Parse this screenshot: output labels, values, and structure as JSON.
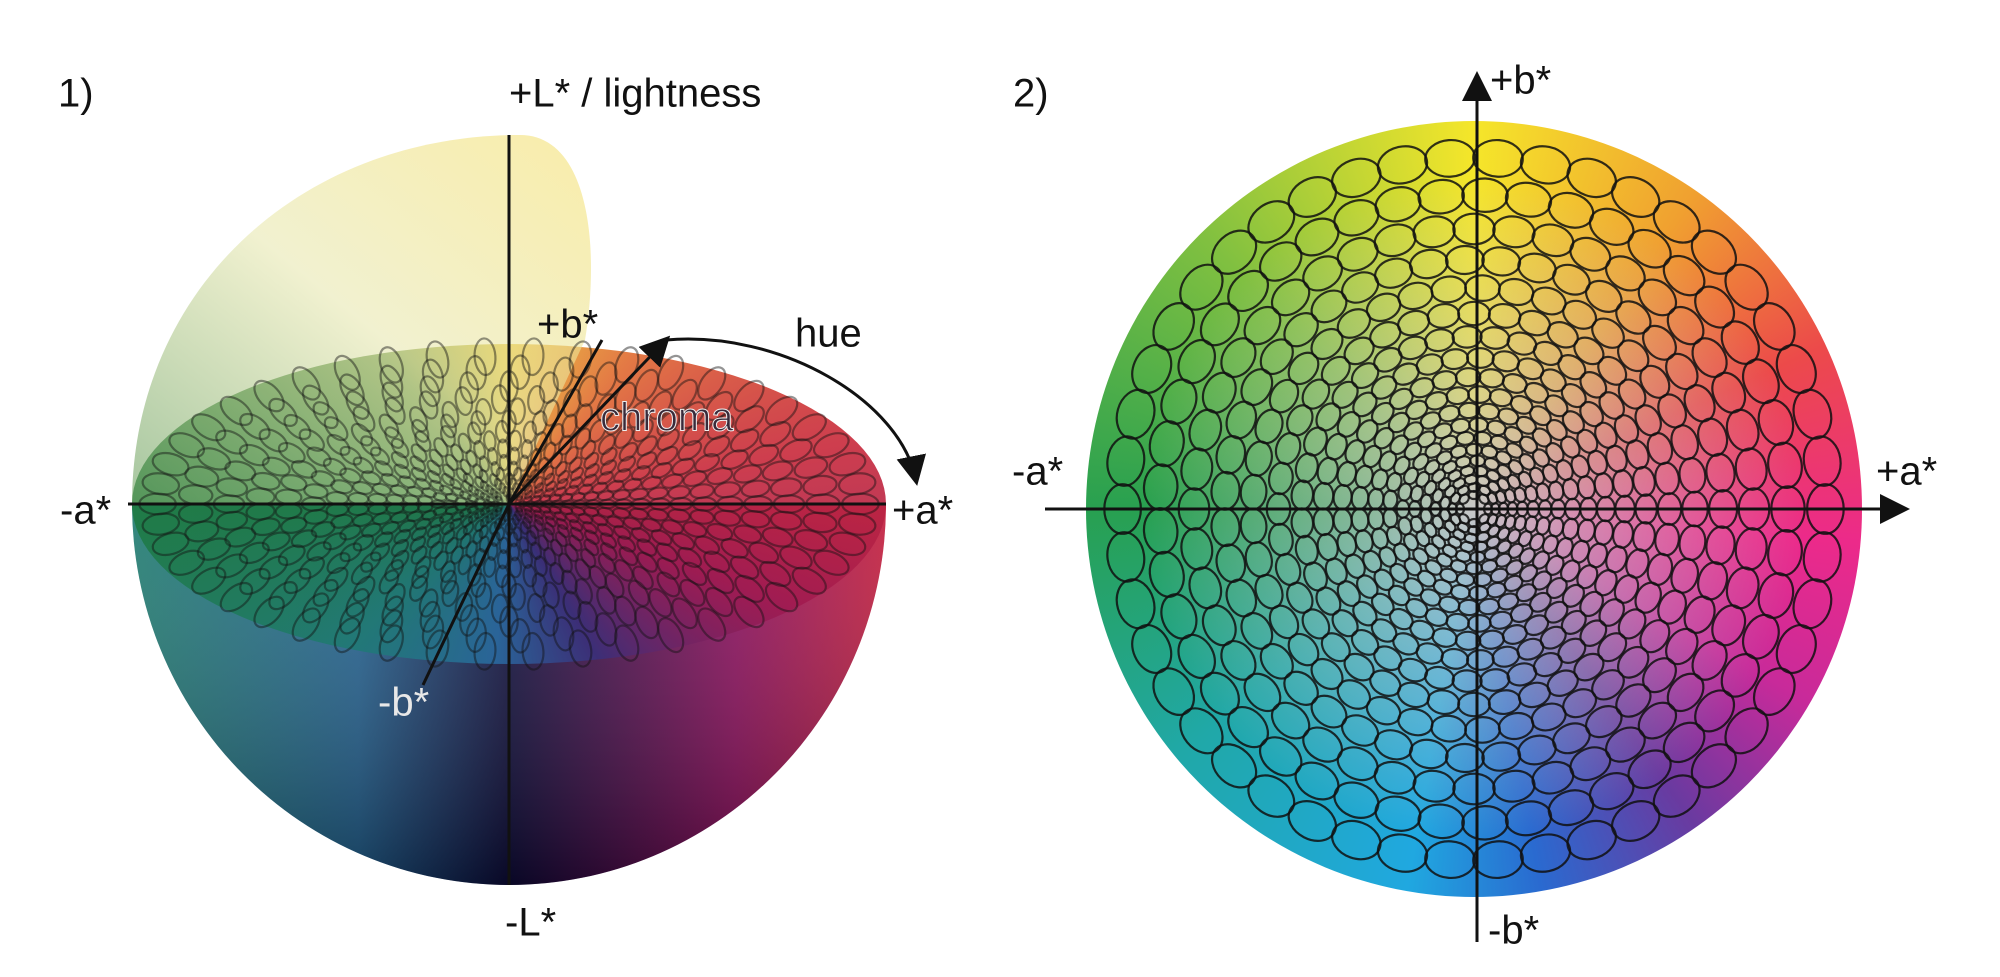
{
  "panel_1": {
    "label": "1)",
    "axes": {
      "plus_L": "+L* / lightness",
      "minus_L": "-L*",
      "plus_a": "+a*",
      "minus_a": "-a*",
      "plus_b": "+b*",
      "minus_b": "-b*"
    },
    "hue": "hue",
    "chroma": "chroma"
  },
  "panel_2": {
    "label": "2)",
    "axes": {
      "plus_a": "+a*",
      "minus_a": "-a*",
      "plus_b": "+b*",
      "minus_b": "-b*"
    }
  }
}
